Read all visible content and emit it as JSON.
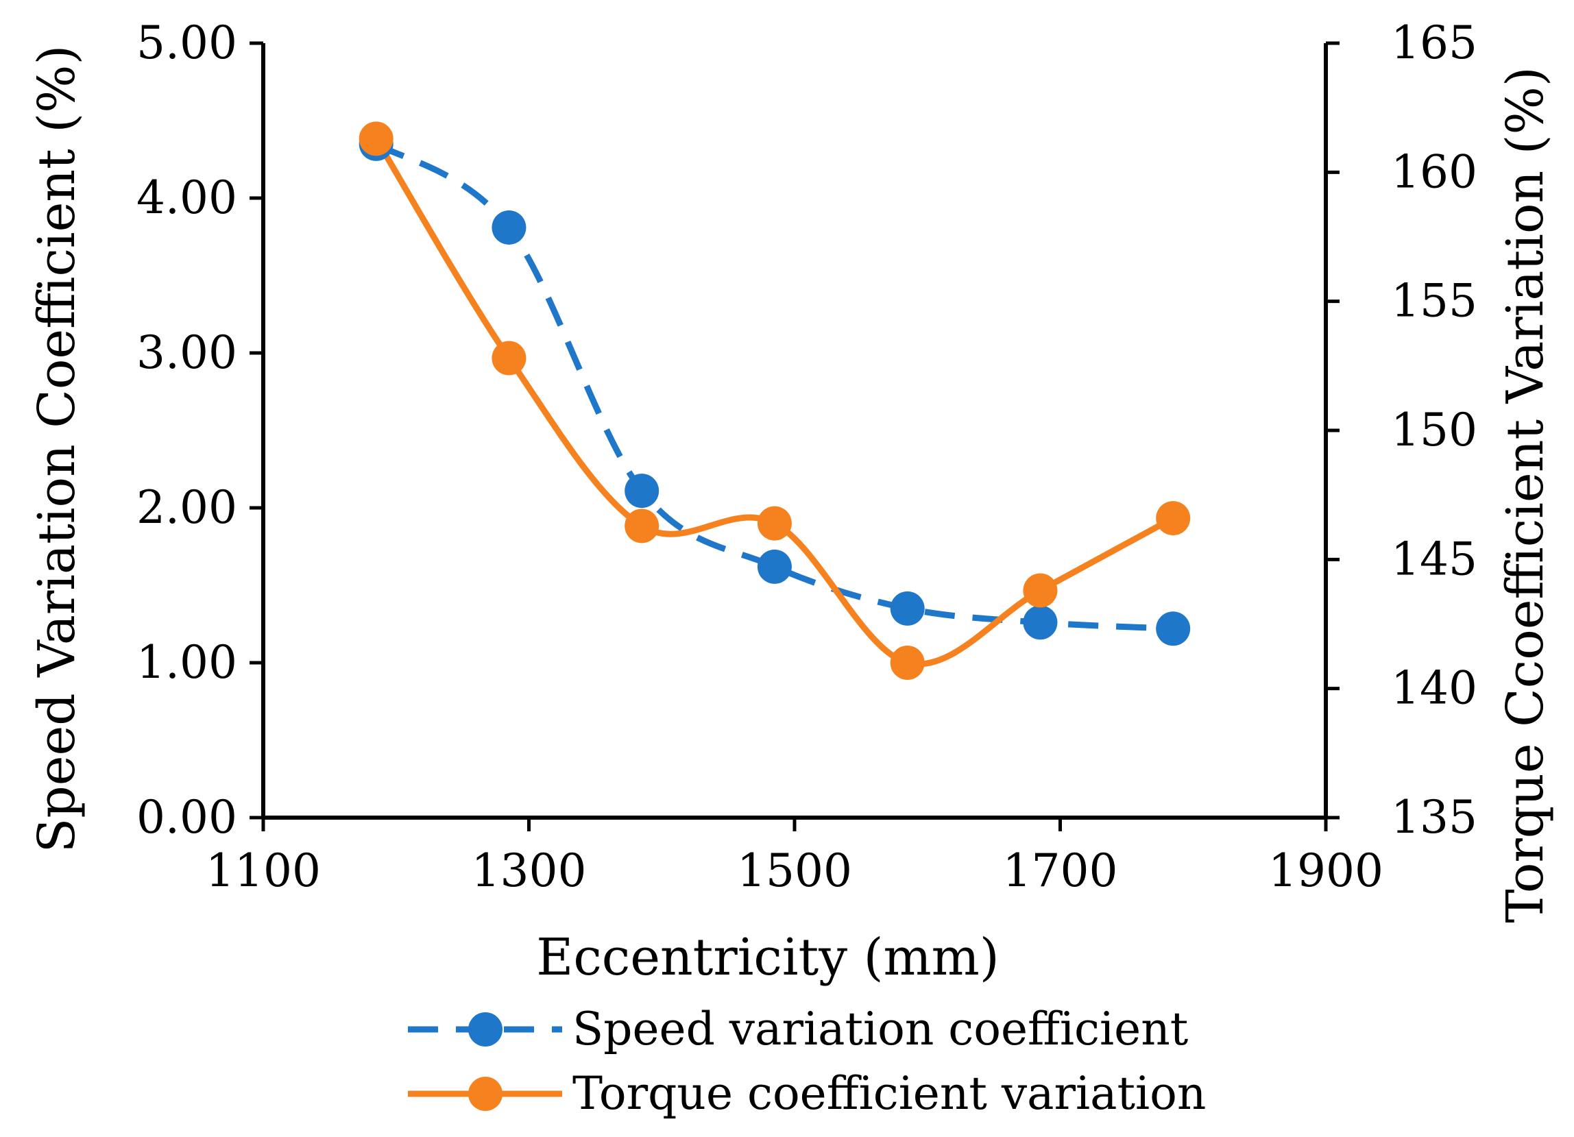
{
  "chart_data": {
    "type": "line",
    "title": "",
    "xlabel": "Eccentricity (mm)",
    "ylabel_left": "Speed Variation Coefficient (%)",
    "ylabel_right": "Torque Ccoefficient Variation  (%)",
    "xlim": [
      1100,
      1900
    ],
    "ylim_left": [
      0,
      5
    ],
    "ylim_right": [
      135,
      165
    ],
    "x_ticks": [
      "1100",
      "1300",
      "1500",
      "1700",
      "1900"
    ],
    "x_tick_values": [
      1100,
      1300,
      1500,
      1700,
      1900
    ],
    "y_left_ticks": [
      "0.00",
      "1.00",
      "2.00",
      "3.00",
      "4.00",
      "5.00"
    ],
    "y_left_tick_values": [
      0,
      1,
      2,
      3,
      4,
      5
    ],
    "y_right_ticks": [
      "135",
      "140",
      "145",
      "150",
      "155",
      "160",
      "165"
    ],
    "y_right_tick_values": [
      135,
      140,
      145,
      150,
      155,
      160,
      165
    ],
    "grid": false,
    "legend_position": "bottom",
    "x": [
      1185,
      1285,
      1385,
      1485,
      1585,
      1685,
      1785
    ],
    "series": [
      {
        "name": "Speed variation coefficient",
        "axis": "left",
        "color": "#1F77C9",
        "style": "dashed",
        "values": [
          4.35,
          3.81,
          2.11,
          1.62,
          1.35,
          1.26,
          1.22
        ]
      },
      {
        "name": "Torque coefficient variation",
        "axis": "right",
        "color": "#F5821F",
        "style": "solid",
        "values": [
          161.3,
          152.8,
          146.3,
          146.4,
          141.0,
          143.8,
          146.6
        ]
      }
    ]
  }
}
